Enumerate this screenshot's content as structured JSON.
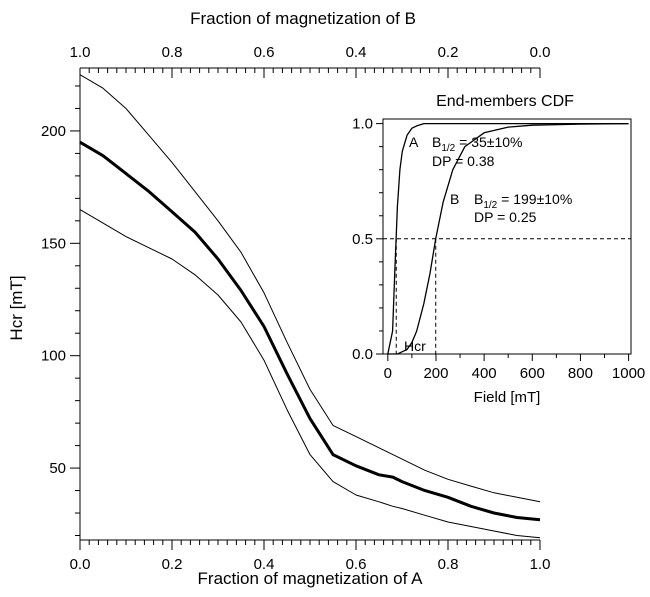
{
  "chart_data": [
    {
      "type": "line",
      "title": "",
      "xlabel": "Fraction of magnetization of A",
      "x2label": "Fraction of magnetization of B",
      "ylabel": "Hcr [mT]",
      "xlim": [
        0,
        1
      ],
      "x2lim": [
        1,
        0
      ],
      "ylim": [
        18,
        228
      ],
      "x_ticks": [
        "0.0",
        "0.2",
        "0.4",
        "0.6",
        "0.8",
        "1.0"
      ],
      "x2_ticks": [
        "1.0",
        "0.8",
        "0.6",
        "0.4",
        "0.2",
        "0.0"
      ],
      "y_ticks": [
        "50",
        "100",
        "150",
        "200"
      ],
      "grid": false,
      "x": [
        0.0,
        0.05,
        0.1,
        0.15,
        0.2,
        0.25,
        0.3,
        0.35,
        0.4,
        0.45,
        0.5,
        0.55,
        0.6,
        0.65,
        0.68,
        0.7,
        0.75,
        0.8,
        0.85,
        0.9,
        0.95,
        1.0
      ],
      "series": [
        {
          "role": "upper",
          "values": [
            225,
            219,
            210,
            198,
            186,
            173,
            160,
            146,
            128,
            106,
            85,
            69,
            64,
            59,
            56,
            54,
            49,
            45,
            42,
            39,
            37,
            35
          ]
        },
        {
          "role": "median",
          "values": [
            195,
            189,
            181,
            173,
            164,
            155,
            143,
            129,
            113,
            92,
            72,
            56,
            51,
            47,
            46,
            44,
            40,
            37,
            33,
            30,
            28,
            27
          ]
        },
        {
          "role": "lower",
          "values": [
            165,
            159,
            153,
            148,
            143,
            136,
            127,
            115,
            98,
            76,
            56,
            44,
            38,
            35,
            33,
            32,
            29,
            26,
            24,
            22,
            20,
            19
          ]
        }
      ]
    },
    {
      "type": "line",
      "title": "End-members CDF",
      "xlabel": "Field [mT]",
      "ylabel": "",
      "xlim": [
        -20,
        1010
      ],
      "ylim": [
        0,
        1.02
      ],
      "x_ticks": [
        "0",
        "200",
        "400",
        "600",
        "800",
        "1000"
      ],
      "y_ticks": [
        "0.0",
        "0.5",
        "1.0"
      ],
      "grid": false,
      "reference_line": 0.5,
      "x": [
        0,
        20,
        30,
        40,
        50,
        60,
        80,
        100,
        120,
        150,
        175,
        199,
        230,
        270,
        320,
        400,
        500,
        600,
        800,
        1000
      ],
      "series": [
        {
          "name": "A",
          "median": 35,
          "values": [
            0.0,
            0.1,
            0.38,
            0.64,
            0.8,
            0.88,
            0.95,
            0.98,
            0.99,
            1.0,
            1.0,
            1.0,
            1.0,
            1.0,
            1.0,
            1.0,
            1.0,
            1.0,
            1.0,
            1.0
          ]
        },
        {
          "name": "B",
          "median": 199,
          "values": [
            0.0,
            0.0,
            0.0,
            0.0,
            0.005,
            0.01,
            0.02,
            0.05,
            0.1,
            0.22,
            0.35,
            0.5,
            0.66,
            0.8,
            0.9,
            0.96,
            0.985,
            0.993,
            0.998,
            1.0
          ]
        }
      ],
      "annotations": {
        "a_letter": "A",
        "b_letter": "B",
        "a_b_main": "B",
        "a_b_sub": "1/2",
        "a_b_val": " = 35±10%",
        "a_dp": "DP = 0.38",
        "b_b_main": "B",
        "b_b_sub": "1/2",
        "b_b_val": " = 199±10%",
        "b_dp": "DP = 0.25",
        "hcr_label": "Hcr"
      }
    }
  ]
}
